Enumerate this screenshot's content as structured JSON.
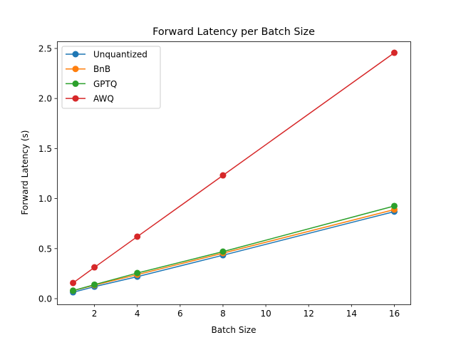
{
  "chart_data": {
    "type": "line",
    "title": "Forward Latency per Batch Size",
    "xlabel": "Batch Size",
    "ylabel": "Forward Latency (s)",
    "x": [
      1,
      2,
      4,
      8,
      16
    ],
    "xlim": [
      0.25,
      16.75
    ],
    "ylim": [
      -0.057,
      2.571
    ],
    "xticks": [
      2,
      4,
      6,
      8,
      10,
      12,
      14,
      16
    ],
    "yticks": [
      0.0,
      0.5,
      1.0,
      1.5,
      2.0,
      2.5
    ],
    "xtick_labels": [
      "2",
      "4",
      "6",
      "8",
      "10",
      "12",
      "14",
      "16"
    ],
    "ytick_labels": [
      "0.0",
      "0.5",
      "1.0",
      "1.5",
      "2.0",
      "2.5"
    ],
    "grid": false,
    "legend_position": "top-left",
    "series": [
      {
        "name": "Unquantized",
        "color": "#1f77b4",
        "values": [
          0.064,
          0.12,
          0.22,
          0.434,
          0.87
        ]
      },
      {
        "name": "BnB",
        "color": "#ff7f0e",
        "values": [
          0.08,
          0.135,
          0.24,
          0.455,
          0.89
        ]
      },
      {
        "name": "GPTQ",
        "color": "#2ca02c",
        "values": [
          0.08,
          0.14,
          0.256,
          0.47,
          0.926
        ]
      },
      {
        "name": "AWQ",
        "color": "#d62728",
        "values": [
          0.157,
          0.313,
          0.62,
          1.232,
          2.457
        ]
      }
    ]
  }
}
